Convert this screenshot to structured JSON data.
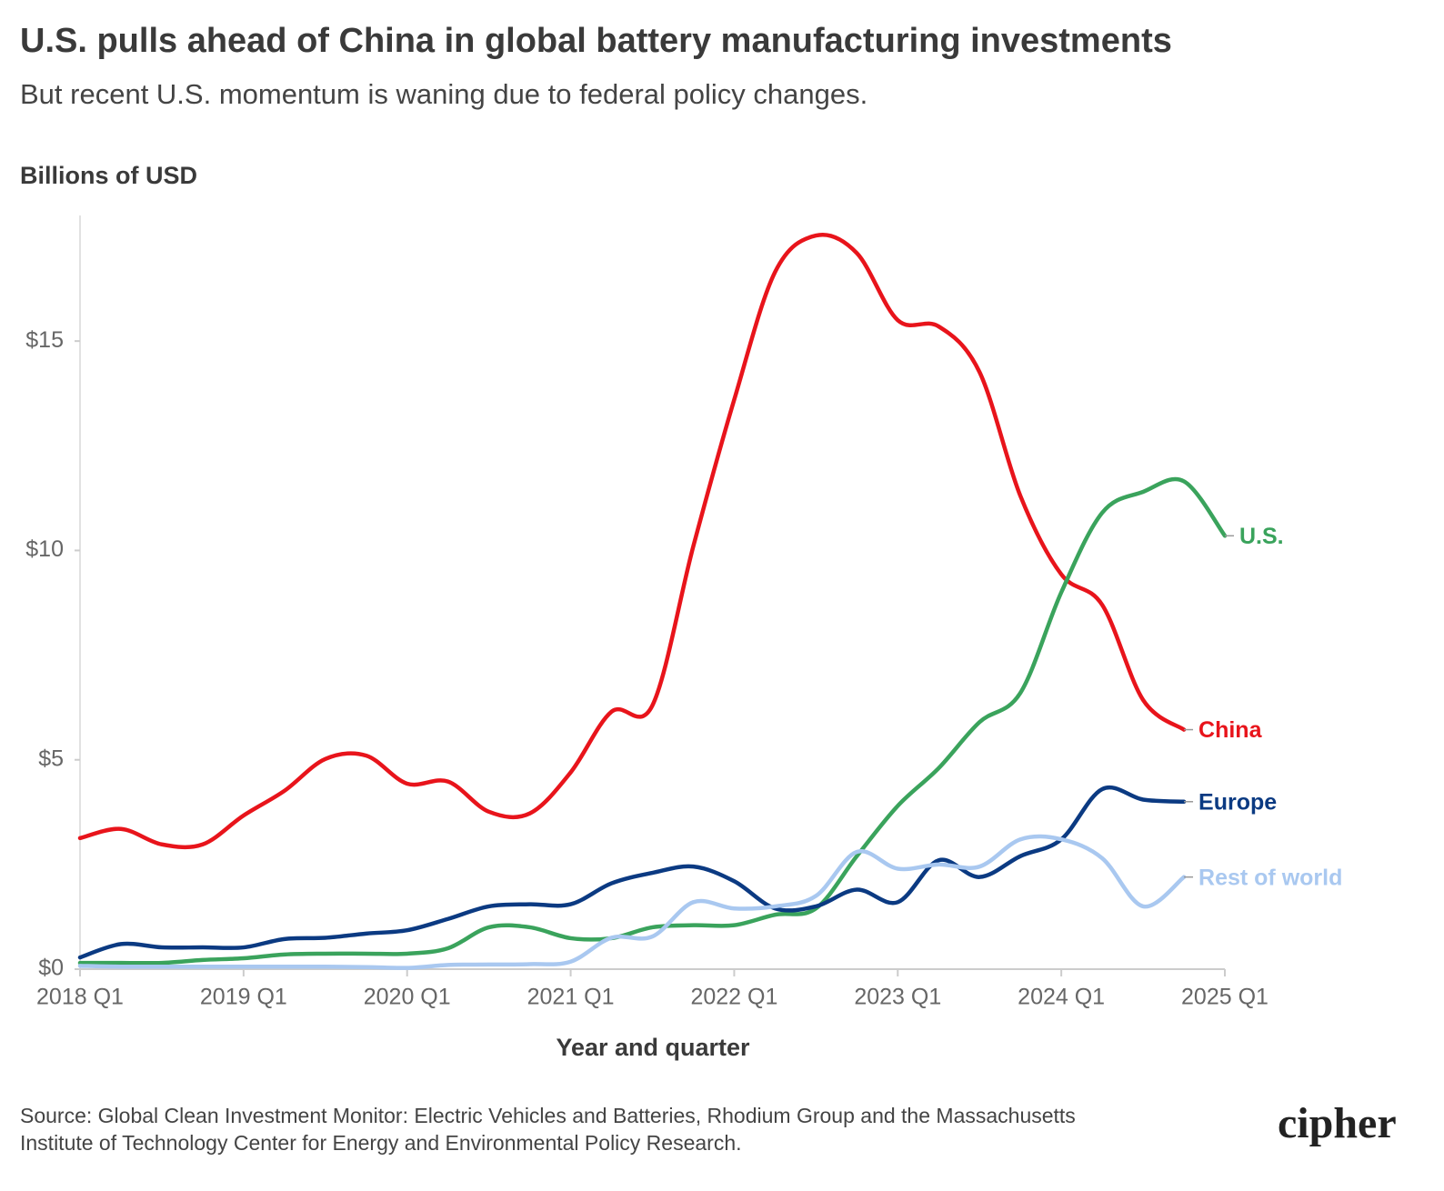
{
  "chart_data": {
    "type": "line",
    "title": "U.S. pulls ahead of China in global battery manufacturing investments",
    "subtitle": "But recent U.S. momentum is waning due to federal policy changes.",
    "y_axis_label": "Billions of USD",
    "x_axis_label": "Year and quarter",
    "source": "Source: Global Clean Investment Monitor: Electric Vehicles and Batteries, Rhodium Group and the Massachusetts Institute of Technology Center for Energy and Environmental Policy Research.",
    "logo": "cipher",
    "categories": [
      "2018 Q1",
      null,
      null,
      null,
      "2019 Q1",
      null,
      null,
      null,
      "2020 Q1",
      null,
      null,
      null,
      "2021 Q1",
      null,
      null,
      null,
      "2022 Q1",
      null,
      null,
      null,
      "2023 Q1",
      null,
      null,
      null,
      "2024 Q1",
      null,
      null,
      null,
      "2025 Q1"
    ],
    "ylim": [
      0,
      18
    ],
    "yticks": [
      {
        "value": 0,
        "label": "$0"
      },
      {
        "value": 5,
        "label": "$5"
      },
      {
        "value": 10,
        "label": "$10"
      },
      {
        "value": 15,
        "label": "$15"
      }
    ],
    "grid": false,
    "series": [
      {
        "name": "China",
        "color": "#e8141b",
        "values": [
          3.13,
          3.35,
          2.98,
          2.98,
          3.67,
          4.26,
          5.02,
          5.1,
          4.43,
          4.48,
          3.76,
          3.72,
          4.7,
          6.15,
          6.3,
          10.1,
          13.6,
          16.65,
          17.52,
          17.1,
          15.5,
          15.35,
          14.26,
          11.3,
          9.43,
          8.7,
          6.43,
          5.72,
          null
        ]
      },
      {
        "name": "U.S.",
        "color": "#3aa35c",
        "values": [
          0.15,
          0.15,
          0.15,
          0.22,
          0.26,
          0.35,
          0.37,
          0.37,
          0.37,
          0.5,
          1.0,
          1.0,
          0.74,
          0.74,
          1.0,
          1.05,
          1.05,
          1.3,
          1.45,
          2.7,
          3.9,
          4.8,
          5.9,
          6.6,
          9.0,
          10.9,
          11.4,
          11.65,
          10.35
        ]
      },
      {
        "name": "Europe",
        "color": "#0b3a82",
        "values": [
          0.28,
          0.6,
          0.52,
          0.52,
          0.52,
          0.72,
          0.75,
          0.85,
          0.93,
          1.2,
          1.5,
          1.55,
          1.55,
          2.05,
          2.3,
          2.45,
          2.1,
          1.45,
          1.5,
          1.9,
          1.6,
          2.6,
          2.2,
          2.7,
          3.1,
          4.3,
          4.05,
          4.0,
          null
        ]
      },
      {
        "name": "Rest of world",
        "color": "#a9c8f0",
        "values": [
          0.08,
          0.06,
          0.06,
          0.06,
          0.06,
          0.06,
          0.06,
          0.05,
          0.03,
          0.1,
          0.11,
          0.12,
          0.18,
          0.75,
          0.78,
          1.6,
          1.45,
          1.5,
          1.75,
          2.8,
          2.4,
          2.5,
          2.45,
          3.1,
          3.1,
          2.65,
          1.5,
          2.2,
          null
        ]
      }
    ]
  }
}
